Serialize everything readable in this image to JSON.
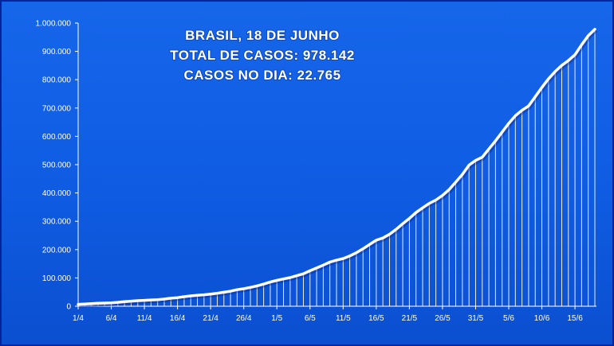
{
  "chart_data": {
    "type": "area",
    "title_lines": [
      "BRASIL,  18 DE JUNHO",
      "TOTAL DE CASOS: 978.142",
      "CASOS NO DIA: 22.765"
    ],
    "ylim": [
      0,
      1000000
    ],
    "y_ticks": [
      "0",
      "100.000",
      "200.000",
      "300.000",
      "400.000",
      "500.000",
      "600.000",
      "700.000",
      "800.000",
      "900.000",
      "1.000.000"
    ],
    "x_ticks": [
      "1/4",
      "6/4",
      "11/4",
      "16/4",
      "21/4",
      "26/4",
      "1/5",
      "6/5",
      "11/5",
      "16/5",
      "21/5",
      "26/5",
      "31/5",
      "5/6",
      "10/6",
      "15/6"
    ],
    "grid": false,
    "legend": "none",
    "colors": {
      "background": "#1262e6",
      "line": "#ffffff",
      "fill_lines": "#ffffff"
    },
    "x": [
      "1/4",
      "2/4",
      "3/4",
      "4/4",
      "5/4",
      "6/4",
      "7/4",
      "8/4",
      "9/4",
      "10/4",
      "11/4",
      "12/4",
      "13/4",
      "14/4",
      "15/4",
      "16/4",
      "17/4",
      "18/4",
      "19/4",
      "20/4",
      "21/4",
      "22/4",
      "23/4",
      "24/4",
      "25/4",
      "26/4",
      "27/4",
      "28/4",
      "29/4",
      "30/4",
      "1/5",
      "2/5",
      "3/5",
      "4/5",
      "5/5",
      "6/5",
      "7/5",
      "8/5",
      "9/5",
      "10/5",
      "11/5",
      "12/5",
      "13/5",
      "14/5",
      "15/5",
      "16/5",
      "17/5",
      "18/5",
      "19/5",
      "20/5",
      "21/5",
      "22/5",
      "23/5",
      "24/5",
      "25/5",
      "26/5",
      "27/5",
      "28/5",
      "29/5",
      "30/5",
      "31/5",
      "1/6",
      "2/6",
      "3/6",
      "4/6",
      "5/6",
      "6/6",
      "7/6",
      "8/6",
      "9/6",
      "10/6",
      "11/6",
      "12/6",
      "13/6",
      "14/6",
      "15/6",
      "16/6",
      "17/6",
      "18/6"
    ],
    "values": [
      6836,
      7910,
      9056,
      10278,
      11130,
      12056,
      13717,
      15927,
      17857,
      19638,
      20727,
      22169,
      23430,
      25262,
      28320,
      30425,
      33682,
      36599,
      38654,
      40581,
      43079,
      45757,
      49492,
      52995,
      58509,
      61888,
      66501,
      71886,
      78162,
      85380,
      91299,
      96396,
      101147,
      107780,
      114715,
      125218,
      135106,
      145328,
      155939,
      162699,
      168331,
      177589,
      188974,
      202918,
      218223,
      233142,
      241080,
      254220,
      271628,
      291579,
      310087,
      330890,
      347398,
      363211,
      374898,
      391222,
      411821,
      438238,
      465166,
      498440,
      514849,
      526447,
      555383,
      584016,
      614941,
      645771,
      672846,
      691758,
      707412,
      739503,
      772416,
      802828,
      828810,
      850514,
      867624,
      888271,
      923189,
      955377,
      978142
    ]
  }
}
